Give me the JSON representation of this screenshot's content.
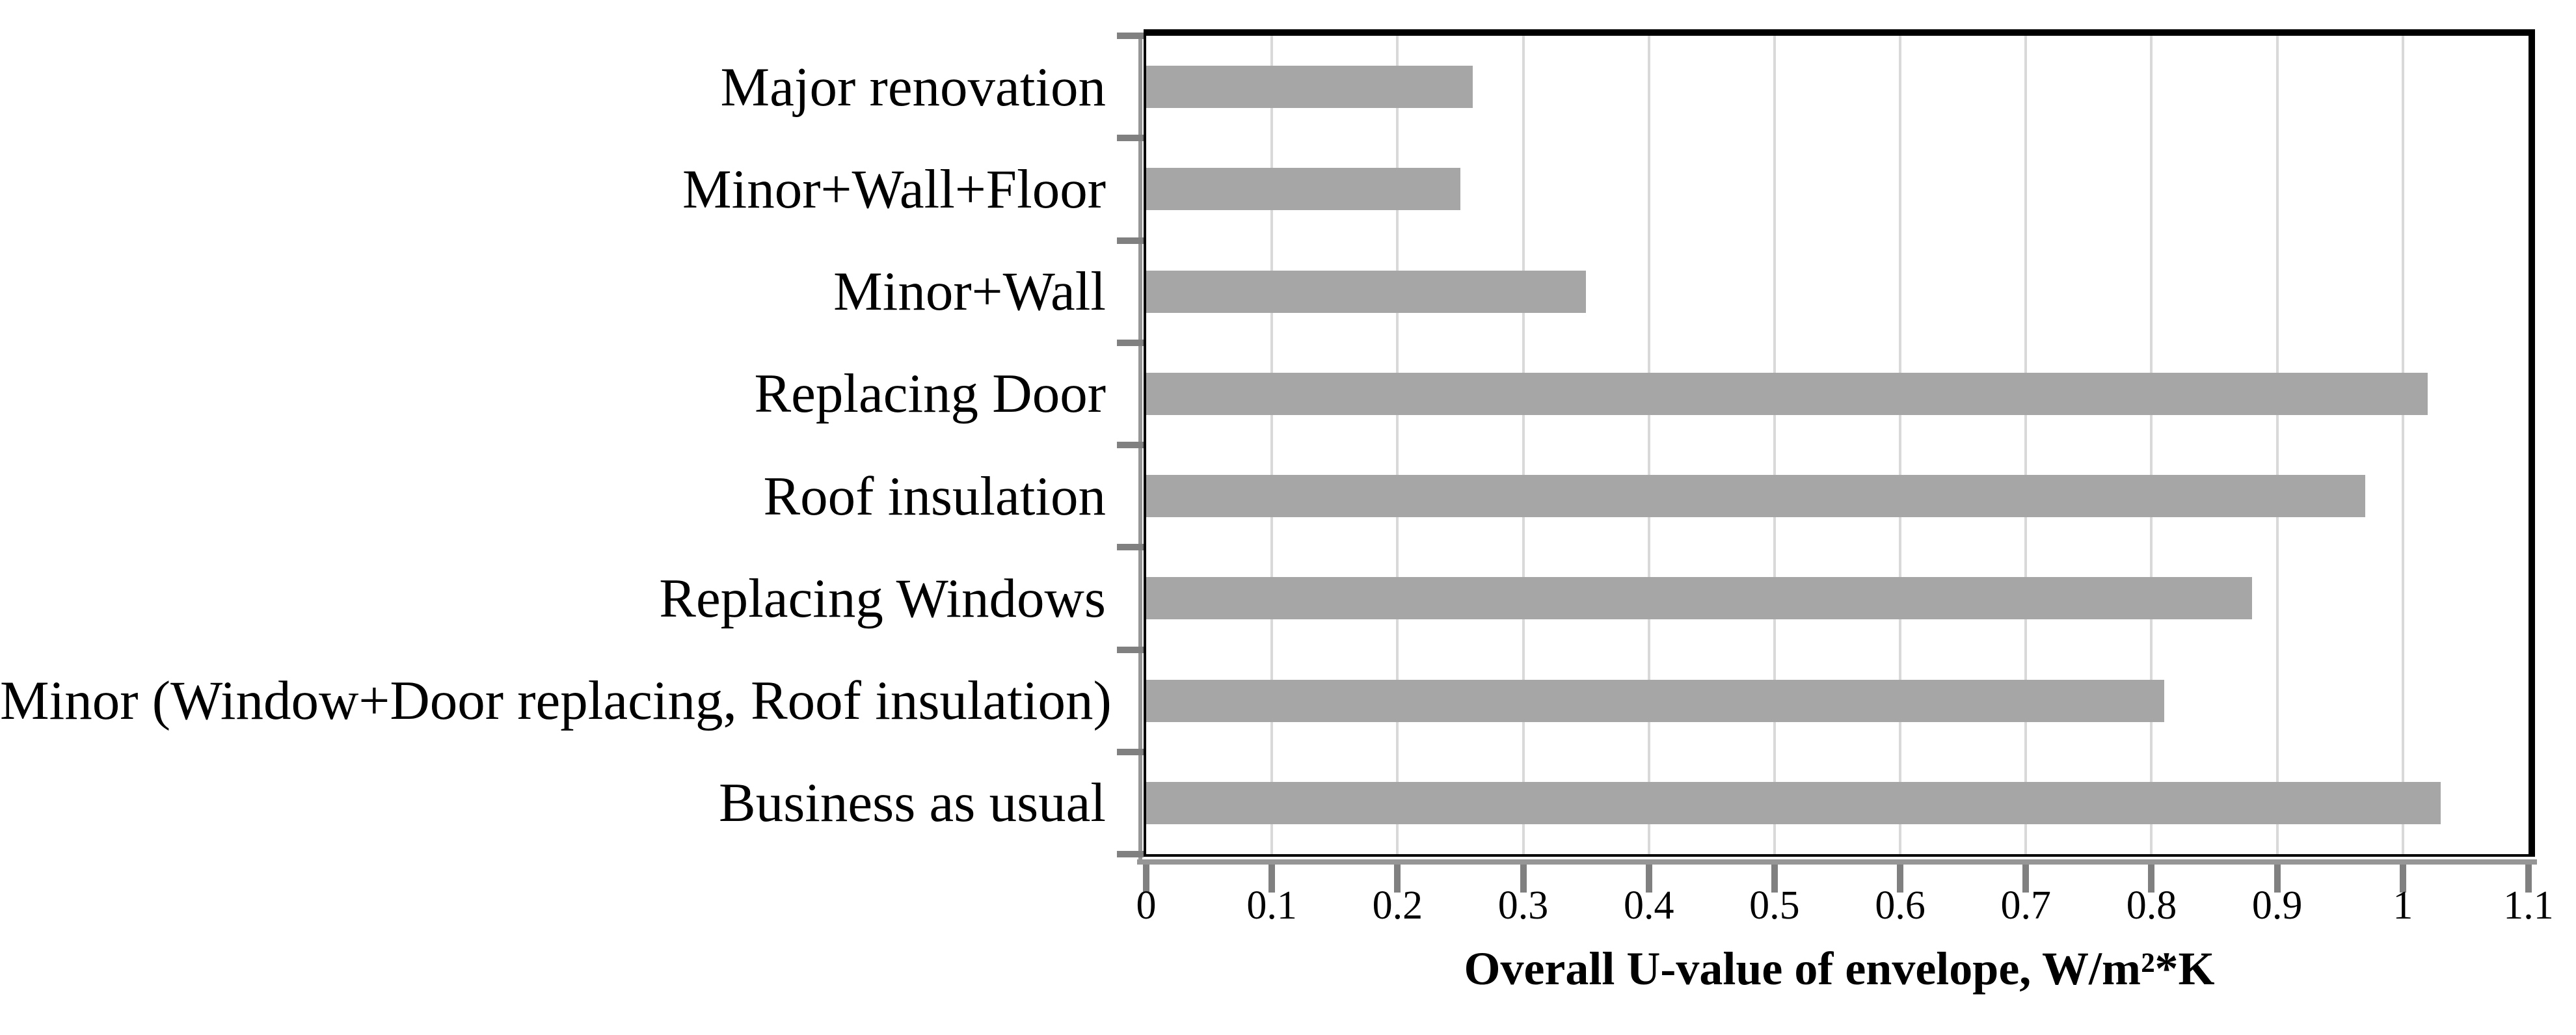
{
  "chart_data": {
    "type": "bar",
    "orientation": "horizontal",
    "title": "",
    "xlabel": "Overall U-value of envelope, W/m²*K",
    "ylabel": "",
    "xlim": [
      0,
      1.1
    ],
    "grid": true,
    "legend": false,
    "categories": [
      "Major renovation",
      "Minor+Wall+Floor",
      "Minor+Wall",
      "Replacing Door",
      "Roof insulation",
      "Replacing Windows",
      "Minor (Window+Door replacing, Roof insulation)",
      "Business as usual"
    ],
    "values": [
      0.26,
      0.25,
      0.35,
      1.02,
      0.97,
      0.88,
      0.81,
      1.03
    ],
    "xticks": [
      0,
      0.1,
      0.2,
      0.3,
      0.4,
      0.5,
      0.6,
      0.7,
      0.8,
      0.9,
      1.0,
      1.1
    ],
    "xtick_labels": [
      "0",
      "0.1",
      "0.2",
      "0.3",
      "0.4",
      "0.5",
      "0.6",
      "0.7",
      "0.8",
      "0.9",
      "1",
      "1.1"
    ],
    "colors": {
      "bar": "#a6a6a6",
      "gridline": "#d9d9d9",
      "axis": "#000000",
      "tick_mark": "#808080",
      "axis_shadow": "#969696",
      "background": "#ffffff"
    }
  }
}
